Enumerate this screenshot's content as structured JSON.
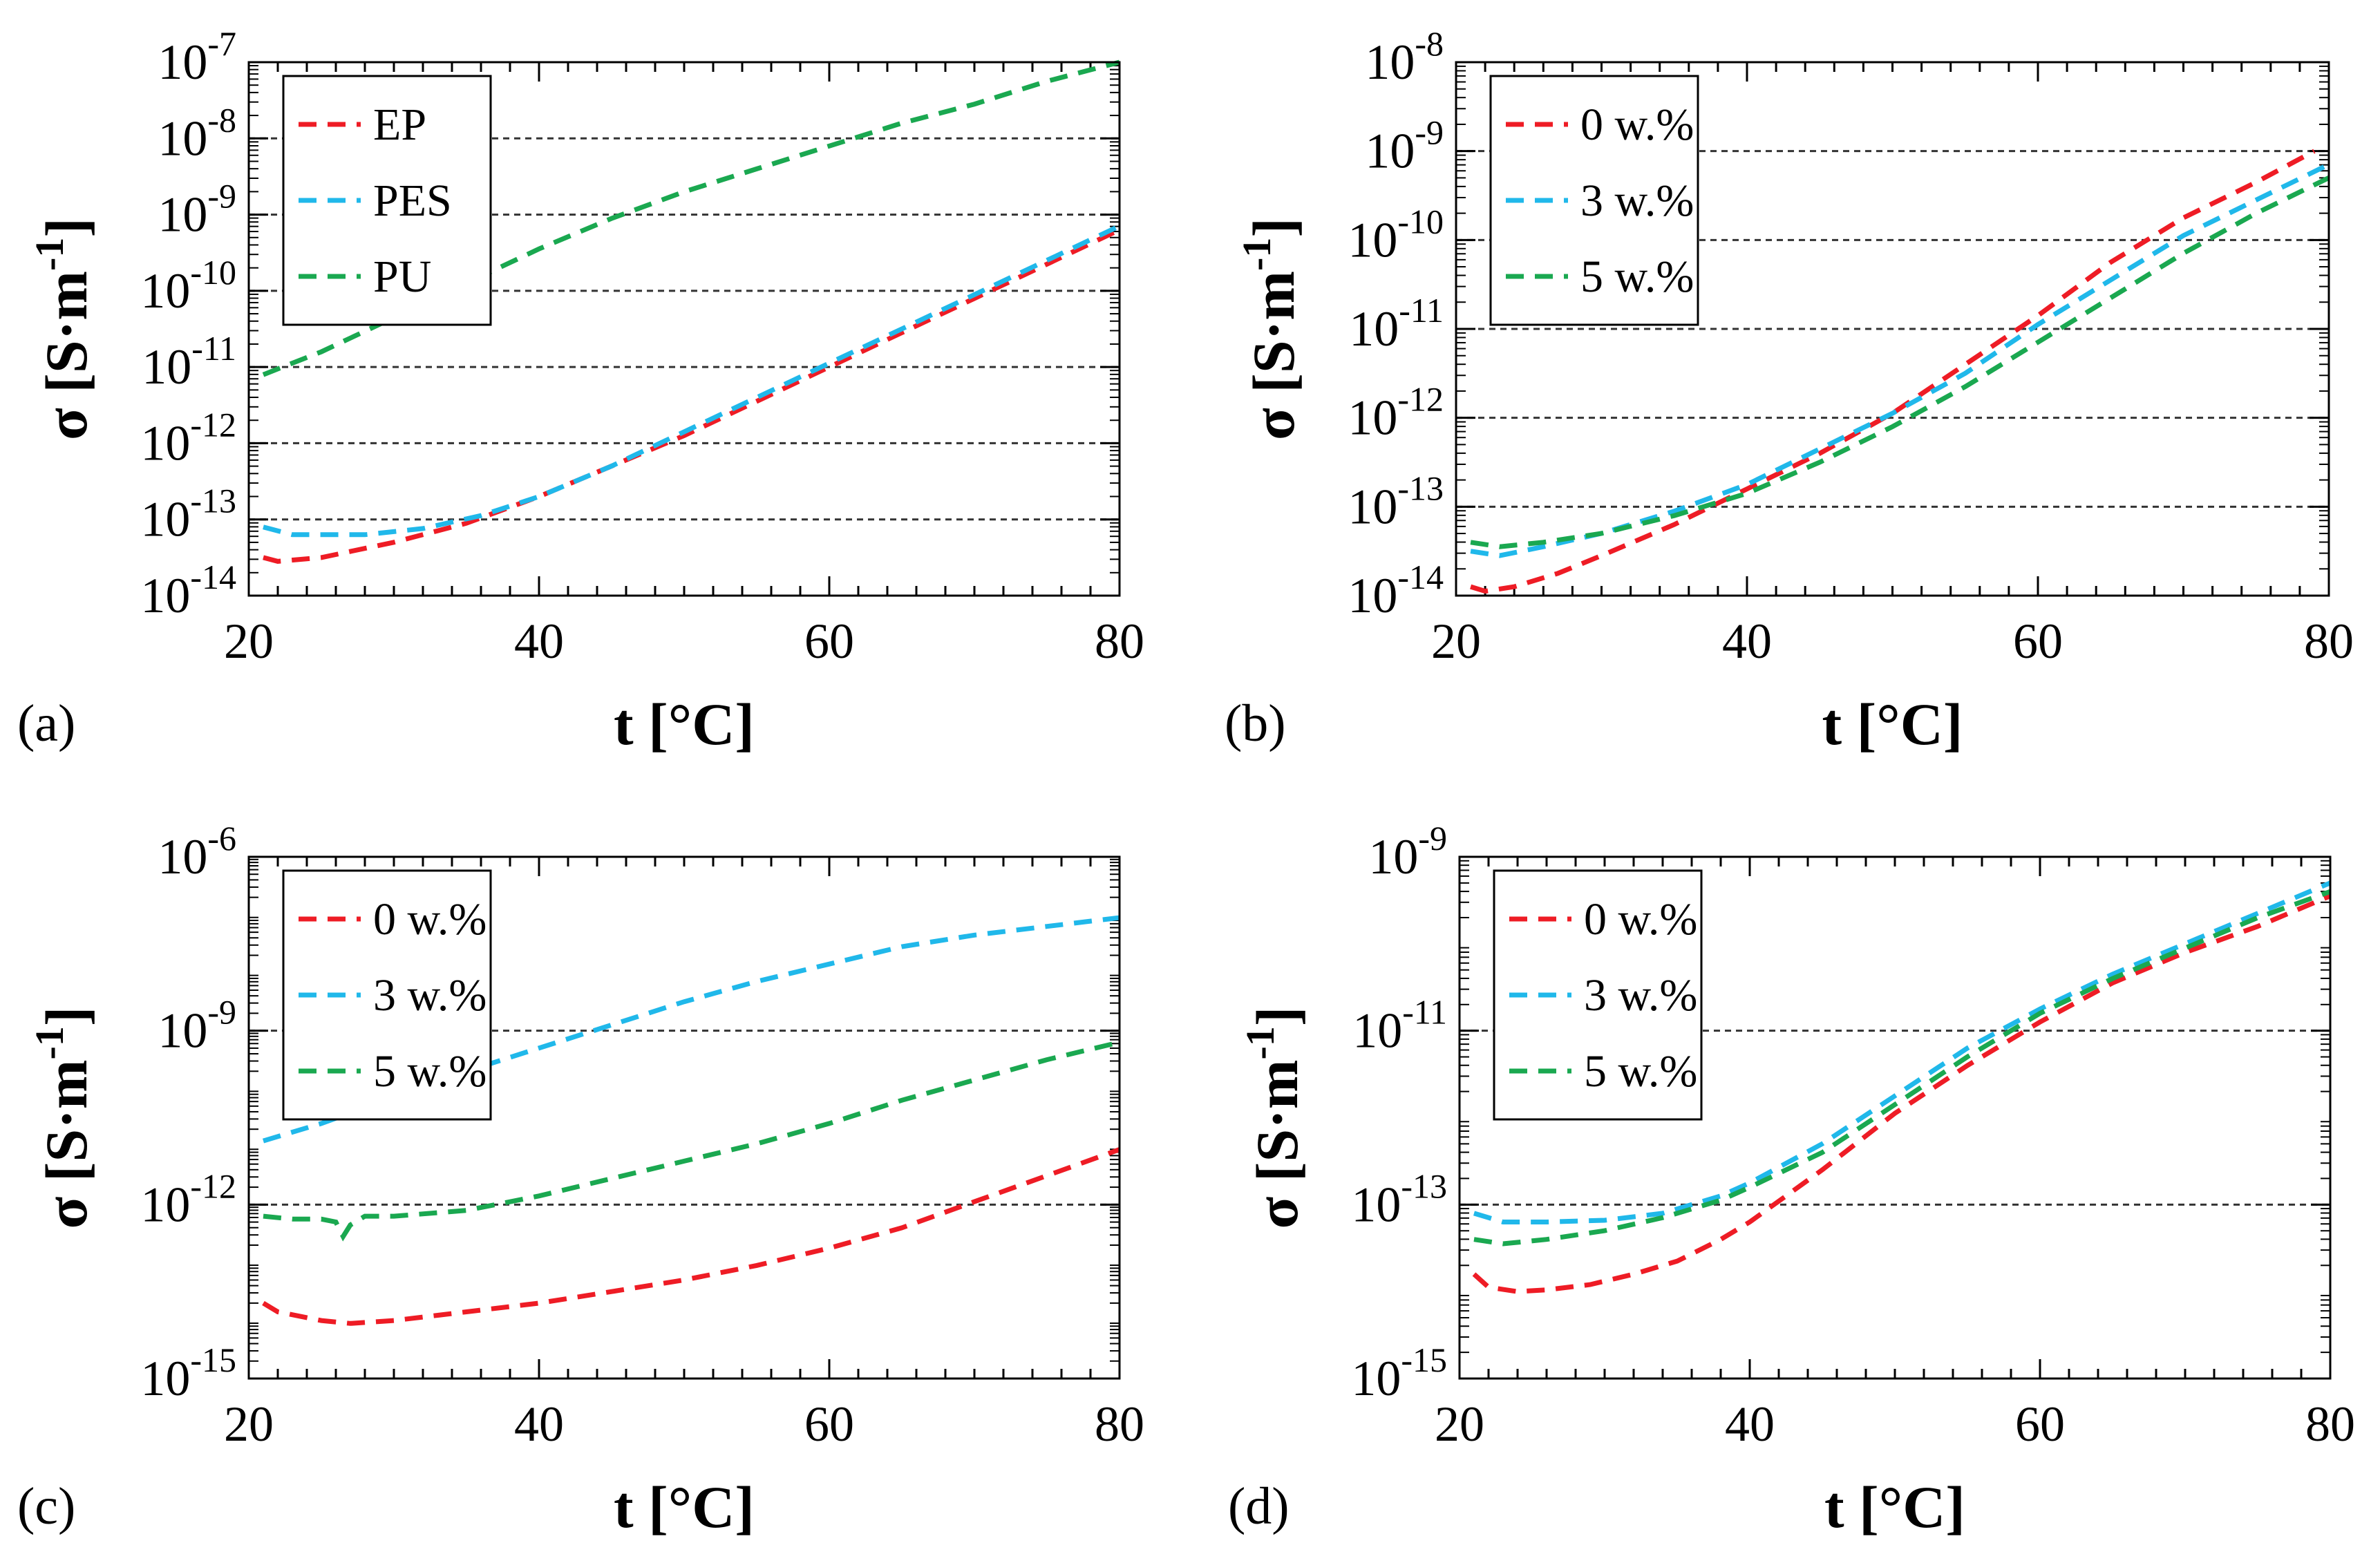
{
  "figure": {
    "colors": {
      "red": "#ee1c25",
      "blue": "#20b8ea",
      "green": "#1aa850",
      "grid": "#333333"
    }
  },
  "chart_data": [
    {
      "panel": "(a)",
      "type": "line",
      "xlabel": "t [°C]",
      "ylabel": "σ [S·m-1]",
      "yscale": "log",
      "xlim": [
        20,
        80
      ],
      "ylim_exp": [
        -14,
        -7
      ],
      "x_ticks": [
        "20",
        "40",
        "60",
        "80"
      ],
      "y_ticks": [
        {
          "exp": -14,
          "label": "-14"
        },
        {
          "exp": -13,
          "label": "-13"
        },
        {
          "exp": -12,
          "label": "-12"
        },
        {
          "exp": -11,
          "label": "-11"
        },
        {
          "exp": -10,
          "label": "-10"
        },
        {
          "exp": -9,
          "label": "-9"
        },
        {
          "exp": -8,
          "label": "-8"
        },
        {
          "exp": -7,
          "label": "-7"
        }
      ],
      "gridlines_exp": [
        -13,
        -12,
        -11,
        -10,
        -9,
        -8
      ],
      "legend_pos": "top-left",
      "series": [
        {
          "name": "EP",
          "color": "#ee1c25",
          "x": [
            21,
            22,
            25,
            30,
            35,
            40,
            45,
            50,
            55,
            60,
            65,
            70,
            75,
            80
          ],
          "log10_y": [
            -13.5,
            -13.55,
            -13.5,
            -13.3,
            -13.05,
            -12.7,
            -12.3,
            -11.9,
            -11.45,
            -11.0,
            -10.55,
            -10.1,
            -9.65,
            -9.2
          ]
        },
        {
          "name": "PES",
          "color": "#20b8ea",
          "x": [
            21,
            23,
            25,
            28,
            32,
            36,
            40,
            45,
            50,
            55,
            60,
            65,
            70,
            75,
            80
          ],
          "log10_y": [
            -13.1,
            -13.2,
            -13.2,
            -13.2,
            -13.12,
            -12.95,
            -12.7,
            -12.3,
            -11.85,
            -11.4,
            -10.95,
            -10.5,
            -10.05,
            -9.6,
            -9.15
          ]
        },
        {
          "name": "PU",
          "color": "#1aa850",
          "x": [
            21,
            25,
            30,
            35,
            40,
            45,
            50,
            55,
            60,
            65,
            70,
            75,
            80
          ],
          "log10_y": [
            -11.1,
            -10.8,
            -10.35,
            -9.9,
            -9.45,
            -9.05,
            -8.7,
            -8.4,
            -8.1,
            -7.8,
            -7.55,
            -7.25,
            -7.0
          ]
        }
      ]
    },
    {
      "panel": "(b)",
      "type": "line",
      "xlabel": "t [°C]",
      "ylabel": "σ [S·m-1]",
      "yscale": "log",
      "xlim": [
        20,
        80
      ],
      "ylim_exp": [
        -14,
        -8
      ],
      "x_ticks": [
        "20",
        "40",
        "60",
        "80"
      ],
      "y_ticks": [
        {
          "exp": -14,
          "label": "-14"
        },
        {
          "exp": -13,
          "label": "-13"
        },
        {
          "exp": -12,
          "label": "-12"
        },
        {
          "exp": -11,
          "label": "-11"
        },
        {
          "exp": -10,
          "label": "-10"
        },
        {
          "exp": -9,
          "label": "-9"
        },
        {
          "exp": -8,
          "label": "-8"
        }
      ],
      "gridlines_exp": [
        -13,
        -12,
        -11,
        -10,
        -9
      ],
      "legend_pos": "top-left",
      "series": [
        {
          "name": "0 w.%",
          "color": "#ee1c25",
          "x": [
            21,
            22,
            24,
            27,
            30,
            35,
            40,
            45,
            50,
            55,
            60,
            65,
            70,
            75,
            79
          ],
          "log10_y": [
            -13.9,
            -13.95,
            -13.9,
            -13.75,
            -13.55,
            -13.2,
            -12.8,
            -12.4,
            -11.95,
            -11.4,
            -10.85,
            -10.25,
            -9.75,
            -9.35,
            -9.0
          ]
        },
        {
          "name": "3 w.%",
          "color": "#20b8ea",
          "x": [
            21,
            23,
            26,
            30,
            35,
            40,
            45,
            50,
            55,
            60,
            65,
            70,
            75,
            80
          ],
          "log10_y": [
            -13.5,
            -13.55,
            -13.45,
            -13.3,
            -13.05,
            -12.75,
            -12.35,
            -11.95,
            -11.5,
            -10.95,
            -10.45,
            -9.95,
            -9.55,
            -9.15
          ]
        },
        {
          "name": "5 w.%",
          "color": "#1aa850",
          "x": [
            21,
            23,
            26,
            30,
            35,
            40,
            45,
            50,
            55,
            60,
            65,
            70,
            75,
            80
          ],
          "log10_y": [
            -13.4,
            -13.45,
            -13.4,
            -13.3,
            -13.1,
            -12.85,
            -12.5,
            -12.1,
            -11.65,
            -11.15,
            -10.65,
            -10.15,
            -9.7,
            -9.3
          ]
        }
      ]
    },
    {
      "panel": "(c)",
      "type": "line",
      "xlabel": "t [°C]",
      "ylabel": "σ [S·m-1]",
      "yscale": "log",
      "xlim": [
        20,
        80
      ],
      "ylim_exp": [
        -15,
        -6
      ],
      "x_ticks": [
        "20",
        "40",
        "60",
        "80"
      ],
      "y_ticks": [
        {
          "exp": -15,
          "label": "-15"
        },
        {
          "exp": -12,
          "label": "-12"
        },
        {
          "exp": -9,
          "label": "-9"
        },
        {
          "exp": -6,
          "label": "-6"
        }
      ],
      "gridlines_exp": [
        -12,
        -9
      ],
      "legend_pos": "top-left",
      "series": [
        {
          "name": "0 w.%",
          "color": "#ee1c25",
          "x": [
            21,
            22,
            25,
            27,
            30,
            35,
            40,
            45,
            50,
            55,
            60,
            65,
            70,
            75,
            80
          ],
          "log10_y": [
            -13.7,
            -13.85,
            -14.0,
            -14.05,
            -14.0,
            -13.85,
            -13.7,
            -13.5,
            -13.3,
            -13.05,
            -12.75,
            -12.4,
            -11.95,
            -11.5,
            -11.05
          ]
        },
        {
          "name": "3 w.%",
          "color": "#20b8ea",
          "x": [
            21,
            25,
            30,
            35,
            40,
            45,
            50,
            55,
            60,
            65,
            70,
            75,
            80
          ],
          "log10_y": [
            -10.9,
            -10.6,
            -10.15,
            -9.7,
            -9.3,
            -8.9,
            -8.5,
            -8.15,
            -7.85,
            -7.55,
            -7.35,
            -7.2,
            -7.05
          ]
        },
        {
          "name": "5 w.%",
          "color": "#1aa850",
          "x": [
            21,
            23,
            25,
            26,
            26.5,
            27,
            28,
            30,
            35,
            40,
            45,
            50,
            55,
            60,
            65,
            70,
            75,
            80
          ],
          "log10_y": [
            -12.2,
            -12.25,
            -12.25,
            -12.3,
            -12.55,
            -12.35,
            -12.2,
            -12.2,
            -12.1,
            -11.85,
            -11.55,
            -11.25,
            -10.95,
            -10.6,
            -10.2,
            -9.85,
            -9.5,
            -9.2
          ]
        }
      ]
    },
    {
      "panel": "(d)",
      "type": "line",
      "xlabel": "t [°C]",
      "ylabel": "σ [S·m-1]",
      "yscale": "log",
      "xlim": [
        20,
        80
      ],
      "ylim_exp": [
        -15,
        -9
      ],
      "x_ticks": [
        "20",
        "40",
        "60",
        "80"
      ],
      "y_ticks": [
        {
          "exp": -15,
          "label": "-15"
        },
        {
          "exp": -13,
          "label": "-13"
        },
        {
          "exp": -11,
          "label": "-11"
        },
        {
          "exp": -9,
          "label": "-9"
        }
      ],
      "gridlines_exp": [
        -13,
        -11
      ],
      "legend_pos": "top-left",
      "series": [
        {
          "name": "0 w.%",
          "color": "#ee1c25",
          "x": [
            21,
            22,
            24,
            26,
            29,
            32,
            35,
            38,
            40,
            45,
            50,
            55,
            60,
            65,
            70,
            75,
            80
          ],
          "log10_y": [
            -13.8,
            -13.95,
            -14.0,
            -13.98,
            -13.92,
            -13.8,
            -13.65,
            -13.4,
            -13.2,
            -12.6,
            -11.95,
            -11.4,
            -10.9,
            -10.45,
            -10.1,
            -9.8,
            -9.45
          ]
        },
        {
          "name": "3 w.%",
          "color": "#20b8ea",
          "x": [
            21,
            23,
            26,
            30,
            34,
            38,
            40,
            45,
            50,
            55,
            60,
            65,
            70,
            75,
            80
          ],
          "log10_y": [
            -13.1,
            -13.2,
            -13.2,
            -13.18,
            -13.1,
            -12.9,
            -12.75,
            -12.3,
            -11.75,
            -11.2,
            -10.75,
            -10.35,
            -10.0,
            -9.65,
            -9.3
          ]
        },
        {
          "name": "5 w.%",
          "color": "#1aa850",
          "x": [
            21,
            23,
            26,
            30,
            34,
            38,
            40,
            45,
            50,
            55,
            60,
            65,
            70,
            75,
            80
          ],
          "log10_y": [
            -13.4,
            -13.45,
            -13.4,
            -13.3,
            -13.15,
            -12.95,
            -12.8,
            -12.4,
            -11.85,
            -11.3,
            -10.8,
            -10.4,
            -10.05,
            -9.7,
            -9.4
          ]
        }
      ]
    }
  ]
}
